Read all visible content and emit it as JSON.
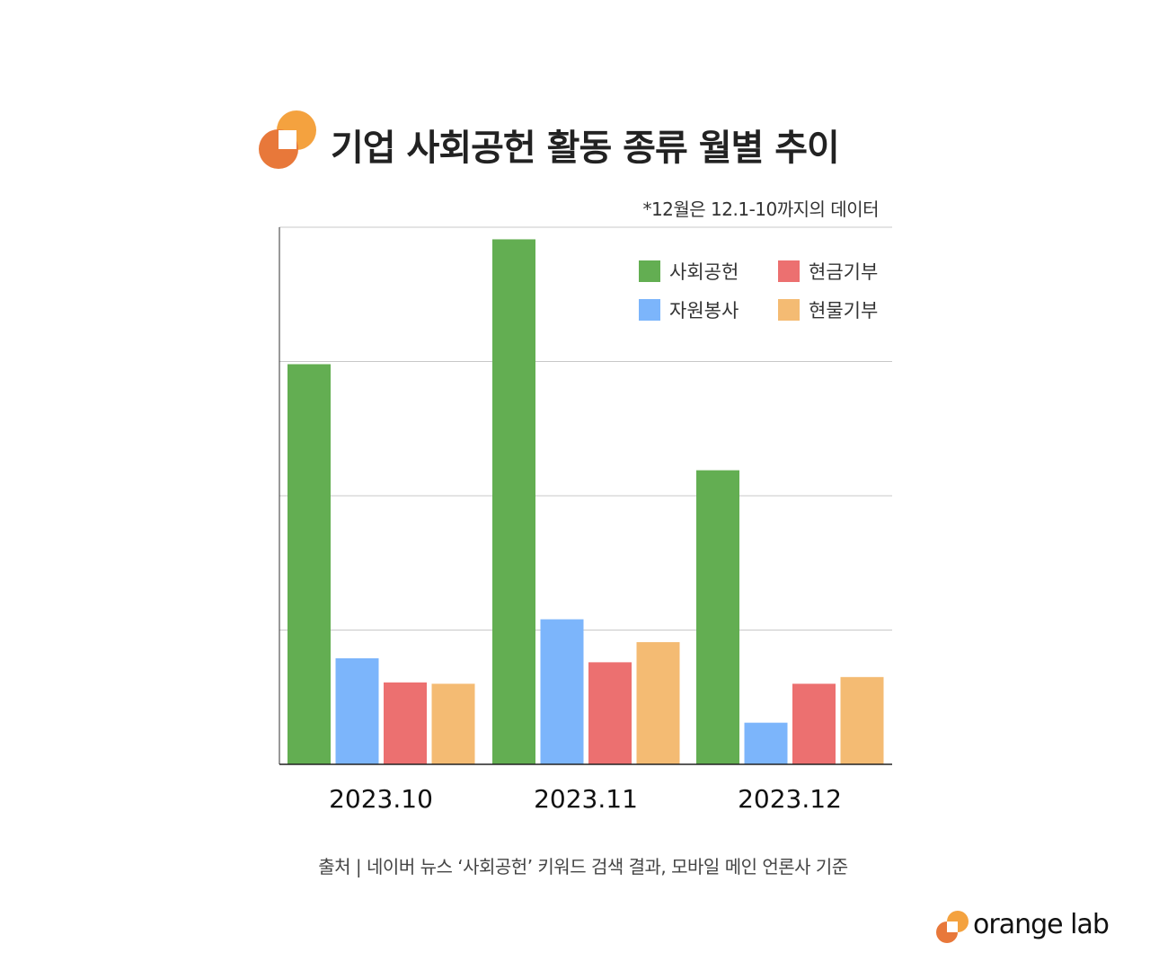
{
  "header": {
    "title": "기업 사회공헌 활동 종류 월별 추이",
    "note": "*12월은 12.1-10까지의 데이터"
  },
  "footer": {
    "source": "출처 | 네이버 뉴스 ‘사회공헌’ 키워드 검색 결과, 모바일 메인 언론사 기준",
    "brand": "orange lab"
  },
  "colors": {
    "logo_light": "#f4a23f",
    "logo_dark": "#e8783a"
  },
  "chart_data": {
    "type": "bar",
    "title": "기업 사회공헌 활동 종류 월별 추이",
    "categories": [
      "2023.10",
      "2023.11",
      "2023.12"
    ],
    "series": [
      {
        "name": "사회공헌",
        "color": "#63ae52",
        "values": [
          2.98,
          3.91,
          2.19
        ]
      },
      {
        "name": "자원봉사",
        "color": "#7cb5fb",
        "values": [
          0.79,
          1.08,
          0.31
        ]
      },
      {
        "name": "현금기부",
        "color": "#ec7070",
        "values": [
          0.61,
          0.76,
          0.6
        ]
      },
      {
        "name": "현물기부",
        "color": "#f4bb73",
        "values": [
          0.6,
          0.91,
          0.65
        ]
      }
    ],
    "ylim": [
      0,
      4
    ],
    "yticks_labeled": false,
    "grid": true,
    "legend": "top-right",
    "xlabel": "",
    "ylabel": ""
  }
}
